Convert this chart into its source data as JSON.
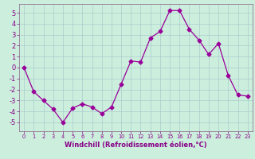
{
  "x": [
    0,
    1,
    2,
    3,
    4,
    5,
    6,
    7,
    8,
    9,
    10,
    11,
    12,
    13,
    14,
    15,
    16,
    17,
    18,
    19,
    20,
    21,
    22,
    23
  ],
  "y": [
    0,
    -2.2,
    -3.0,
    -3.8,
    -5.0,
    -3.7,
    -3.3,
    -3.6,
    -4.2,
    -3.6,
    -1.5,
    0.6,
    0.5,
    2.7,
    3.3,
    5.2,
    5.2,
    3.5,
    2.5,
    1.2,
    2.2,
    -0.7,
    -2.5,
    -2.6
  ],
  "line_color": "#990099",
  "marker": "D",
  "marker_size": 2.5,
  "bg_color": "#cceedd",
  "grid_color": "#aacccc",
  "xlabel": "Windchill (Refroidissement éolien,°C)",
  "ylim": [
    -5.8,
    5.8
  ],
  "xlim": [
    -0.5,
    23.5
  ],
  "yticks": [
    -5,
    -4,
    -3,
    -2,
    -1,
    0,
    1,
    2,
    3,
    4,
    5
  ],
  "xticks": [
    0,
    1,
    2,
    3,
    4,
    5,
    6,
    7,
    8,
    9,
    10,
    11,
    12,
    13,
    14,
    15,
    16,
    17,
    18,
    19,
    20,
    21,
    22,
    23
  ],
  "tick_color": "#880088",
  "label_color": "#880088",
  "spine_color": "#886688",
  "xlabel_fontsize": 6.0,
  "ytick_fontsize": 6.0,
  "xtick_fontsize": 4.8
}
